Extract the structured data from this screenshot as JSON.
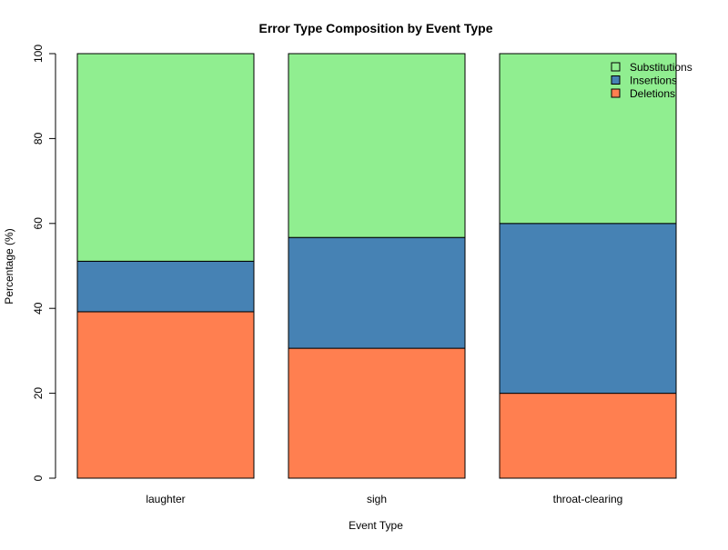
{
  "chart_data": {
    "type": "bar",
    "stacked": true,
    "title": "Error Type Composition by Event Type",
    "xlabel": "Event Type",
    "ylabel": "Percentage (%)",
    "ylim": [
      0,
      100
    ],
    "yticks": [
      0,
      20,
      40,
      60,
      80,
      100
    ],
    "grid": false,
    "legend_position": "top-right",
    "categories": [
      "laughter",
      "sigh",
      "throat-clearing"
    ],
    "series": [
      {
        "name": "Deletions",
        "color": "#ff7f50",
        "values": [
          39.2,
          30.6,
          20.0
        ]
      },
      {
        "name": "Insertions",
        "color": "#4682b4",
        "values": [
          11.9,
          26.1,
          40.0
        ]
      },
      {
        "name": "Substitutions",
        "color": "#90ee90",
        "values": [
          48.9,
          43.3,
          40.0
        ]
      }
    ],
    "legend_order": [
      "Substitutions",
      "Insertions",
      "Deletions"
    ]
  }
}
